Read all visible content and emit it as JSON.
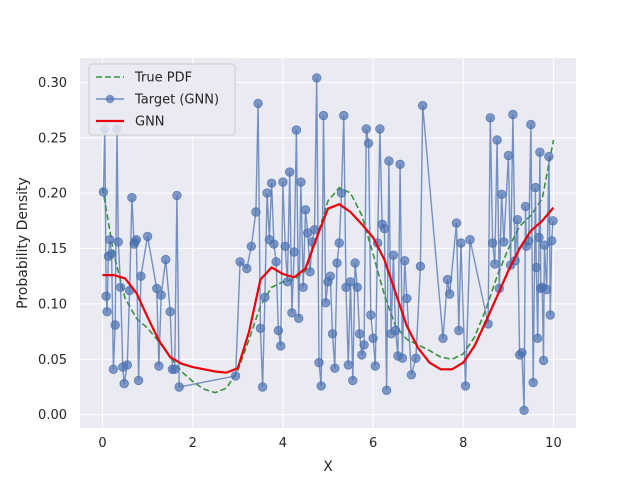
{
  "chart_data": {
    "type": "line",
    "xlabel": "X",
    "ylabel": "Probability Density",
    "xlim": [
      -0.5,
      10.5
    ],
    "ylim": [
      -0.012,
      0.322
    ],
    "xticks": [
      0,
      2,
      4,
      6,
      8,
      10
    ],
    "yticks": [
      0.0,
      0.05,
      0.1,
      0.15,
      0.2,
      0.25,
      0.3
    ],
    "ytick_labels": [
      "0.00",
      "0.05",
      "0.10",
      "0.15",
      "0.20",
      "0.25",
      "0.30"
    ],
    "grid": true,
    "legend_position": "top-left",
    "series": [
      {
        "name": "True PDF",
        "style": "dashed",
        "color": "#3a923a",
        "x": [
          0,
          0.25,
          0.5,
          0.75,
          1.0,
          1.25,
          1.5,
          1.75,
          2.0,
          2.25,
          2.5,
          2.75,
          3.0,
          3.25,
          3.5,
          3.75,
          4.0,
          4.25,
          4.5,
          4.75,
          5.0,
          5.25,
          5.5,
          5.75,
          6.0,
          6.25,
          6.5,
          6.75,
          7.0,
          7.25,
          7.5,
          7.75,
          8.0,
          8.25,
          8.5,
          8.75,
          9.0,
          9.25,
          9.5,
          9.75,
          10.0
        ],
        "values": [
          0.205,
          0.145,
          0.105,
          0.087,
          0.078,
          0.066,
          0.052,
          0.039,
          0.03,
          0.023,
          0.02,
          0.024,
          0.04,
          0.068,
          0.098,
          0.115,
          0.12,
          0.122,
          0.13,
          0.16,
          0.193,
          0.205,
          0.2,
          0.18,
          0.145,
          0.108,
          0.08,
          0.068,
          0.063,
          0.058,
          0.052,
          0.05,
          0.055,
          0.07,
          0.095,
          0.125,
          0.15,
          0.17,
          0.18,
          0.195,
          0.248
        ]
      },
      {
        "name": "Target (GNN)",
        "style": "line-markers",
        "color": "#4c72b0",
        "x": [
          0.02,
          0.05,
          0.08,
          0.1,
          0.13,
          0.16,
          0.2,
          0.24,
          0.28,
          0.32,
          0.35,
          0.4,
          0.45,
          0.48,
          0.55,
          0.6,
          0.65,
          0.7,
          0.72,
          0.75,
          0.8,
          0.85,
          1.0,
          1.2,
          1.25,
          1.3,
          1.4,
          1.5,
          1.55,
          1.6,
          1.65,
          1.7,
          2.95,
          3.05,
          3.2,
          3.3,
          3.4,
          3.45,
          3.5,
          3.55,
          3.6,
          3.65,
          3.7,
          3.75,
          3.8,
          3.85,
          3.9,
          3.95,
          4.0,
          4.05,
          4.1,
          4.15,
          4.2,
          4.25,
          4.3,
          4.35,
          4.4,
          4.45,
          4.5,
          4.55,
          4.6,
          4.65,
          4.7,
          4.75,
          4.8,
          4.85,
          4.9,
          4.95,
          5.0,
          5.05,
          5.1,
          5.15,
          5.2,
          5.25,
          5.3,
          5.35,
          5.4,
          5.45,
          5.5,
          5.55,
          5.6,
          5.65,
          5.7,
          5.75,
          5.8,
          5.85,
          5.9,
          5.95,
          6.0,
          6.05,
          6.1,
          6.15,
          6.2,
          6.25,
          6.3,
          6.35,
          6.4,
          6.45,
          6.5,
          6.55,
          6.6,
          6.65,
          6.7,
          6.75,
          6.85,
          6.95,
          7.05,
          7.1,
          7.55,
          7.65,
          7.7,
          7.85,
          7.9,
          7.95,
          8.05,
          8.15,
          8.55,
          8.6,
          8.65,
          8.7,
          8.75,
          8.8,
          8.85,
          8.9,
          9.0,
          9.05,
          9.1,
          9.15,
          9.2,
          9.25,
          9.3,
          9.35,
          9.38,
          9.4,
          9.45,
          9.5,
          9.55,
          9.6,
          9.62,
          9.65,
          9.68,
          9.7,
          9.72,
          9.75,
          9.78,
          9.8,
          9.85,
          9.9,
          9.93,
          9.96,
          9.99
        ],
        "values": [
          0.201,
          0.258,
          0.107,
          0.093,
          0.143,
          0.158,
          0.145,
          0.041,
          0.081,
          0.258,
          0.156,
          0.115,
          0.043,
          0.028,
          0.045,
          0.112,
          0.196,
          0.154,
          0.156,
          0.158,
          0.031,
          0.125,
          0.161,
          0.114,
          0.044,
          0.108,
          0.14,
          0.093,
          0.041,
          0.041,
          0.198,
          0.025,
          0.035,
          0.138,
          0.132,
          0.152,
          0.183,
          0.281,
          0.078,
          0.025,
          0.106,
          0.2,
          0.158,
          0.209,
          0.154,
          0.138,
          0.076,
          0.062,
          0.21,
          0.152,
          0.12,
          0.219,
          0.092,
          0.147,
          0.257,
          0.087,
          0.21,
          0.115,
          0.185,
          0.164,
          0.129,
          0.156,
          0.167,
          0.304,
          0.047,
          0.026,
          0.27,
          0.101,
          0.12,
          0.125,
          0.073,
          0.042,
          0.137,
          0.155,
          0.2,
          0.27,
          0.115,
          0.045,
          0.12,
          0.031,
          0.137,
          0.115,
          0.073,
          0.054,
          0.063,
          0.258,
          0.245,
          0.09,
          0.069,
          0.044,
          0.155,
          0.258,
          0.172,
          0.168,
          0.022,
          0.229,
          0.073,
          0.144,
          0.076,
          0.053,
          0.226,
          0.051,
          0.139,
          0.105,
          0.036,
          0.051,
          0.134,
          0.279,
          0.069,
          0.122,
          0.109,
          0.173,
          0.076,
          0.155,
          0.026,
          0.158,
          0.082,
          0.268,
          0.155,
          0.136,
          0.248,
          0.114,
          0.199,
          0.156,
          0.234,
          0.135,
          0.271,
          0.139,
          0.176,
          0.054,
          0.056,
          0.004,
          0.188,
          0.152,
          0.157,
          0.262,
          0.029,
          0.205,
          0.133,
          0.069,
          0.16,
          0.237,
          0.114,
          0.115,
          0.049,
          0.153,
          0.113,
          0.233,
          0.09,
          0.157,
          0.175
        ]
      },
      {
        "name": "GNN",
        "style": "solid",
        "color": "#e8000b",
        "x": [
          0,
          0.25,
          0.5,
          0.75,
          1.0,
          1.25,
          1.5,
          1.75,
          2.0,
          2.25,
          2.5,
          2.75,
          3.0,
          3.25,
          3.5,
          3.75,
          4.0,
          4.25,
          4.5,
          4.75,
          5.0,
          5.25,
          5.5,
          5.75,
          6.0,
          6.25,
          6.5,
          6.75,
          7.0,
          7.25,
          7.5,
          7.75,
          8.0,
          8.25,
          8.5,
          8.75,
          9.0,
          9.25,
          9.5,
          9.75,
          10.0
        ],
        "values": [
          0.126,
          0.126,
          0.123,
          0.11,
          0.088,
          0.067,
          0.052,
          0.046,
          0.043,
          0.041,
          0.039,
          0.038,
          0.042,
          0.075,
          0.122,
          0.133,
          0.127,
          0.124,
          0.132,
          0.16,
          0.186,
          0.19,
          0.183,
          0.172,
          0.16,
          0.14,
          0.11,
          0.08,
          0.06,
          0.047,
          0.041,
          0.041,
          0.047,
          0.062,
          0.084,
          0.107,
          0.13,
          0.15,
          0.166,
          0.175,
          0.187
        ]
      }
    ]
  }
}
